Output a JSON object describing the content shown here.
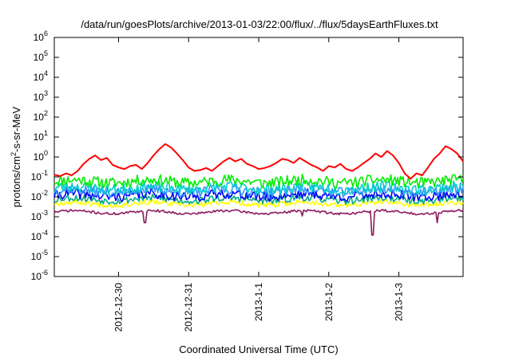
{
  "chart_data": {
    "type": "line",
    "title": "/data/run/goesPlots/archive/2013-01-03/22:00/flux/../flux/5daysEarthFluxes.txt",
    "xlabel": "Coordinated Universal Time (UTC)",
    "ylabel": "protons/cm2-s-sr-MeV",
    "ylabel_parts": [
      "protons/cm",
      "2",
      "-s-sr-MeV"
    ],
    "x_range": [
      "2012-12-29T02:00",
      "2013-01-03T22:00"
    ],
    "y_scale": "log",
    "ylim": [
      1e-06,
      1000000
    ],
    "y_ticks": [
      {
        "exp": "-6",
        "value": 1e-06
      },
      {
        "exp": "-5",
        "value": 1e-05
      },
      {
        "exp": "-4",
        "value": 0.0001
      },
      {
        "exp": "-3",
        "value": 0.001
      },
      {
        "exp": "-2",
        "value": 0.01
      },
      {
        "exp": "-1",
        "value": 0.1
      },
      {
        "exp": "0",
        "value": 1
      },
      {
        "exp": "1",
        "value": 10
      },
      {
        "exp": "2",
        "value": 100
      },
      {
        "exp": "3",
        "value": 1000
      },
      {
        "exp": "4",
        "value": 10000
      },
      {
        "exp": "5",
        "value": 100000
      },
      {
        "exp": "6",
        "value": 1000000
      }
    ],
    "y_tick_base": "10",
    "x_ticks": [
      {
        "label": "2012-12-30",
        "date": "2012-12-30T00:00"
      },
      {
        "label": "2012-12-31",
        "date": "2012-12-31T00:00"
      },
      {
        "label": "2013-1-1",
        "date": "2013-01-01T00:00"
      },
      {
        "label": "2013-1-2",
        "date": "2013-01-02T00:00"
      },
      {
        "label": "2013-1-3",
        "date": "2013-01-03T00:00"
      }
    ],
    "grid": false,
    "legend": "none",
    "series": [
      {
        "color": "#ff0000",
        "points": [
          [
            "2012-12-29T02:00",
            0.13
          ],
          [
            "2012-12-29T04:00",
            0.11
          ],
          [
            "2012-12-29T06:00",
            0.15
          ],
          [
            "2012-12-29T08:00",
            0.12
          ],
          [
            "2012-12-29T10:00",
            0.2
          ],
          [
            "2012-12-29T12:00",
            0.45
          ],
          [
            "2012-12-29T14:00",
            0.8
          ],
          [
            "2012-12-29T16:00",
            1.2
          ],
          [
            "2012-12-29T18:00",
            0.7
          ],
          [
            "2012-12-29T20:00",
            0.9
          ],
          [
            "2012-12-29T22:00",
            0.4
          ],
          [
            "2012-12-30T00:00",
            0.3
          ],
          [
            "2012-12-30T02:00",
            0.25
          ],
          [
            "2012-12-30T04:00",
            0.35
          ],
          [
            "2012-12-30T06:00",
            0.4
          ],
          [
            "2012-12-30T08:00",
            0.25
          ],
          [
            "2012-12-30T10:00",
            0.5
          ],
          [
            "2012-12-30T12:00",
            1.2
          ],
          [
            "2012-12-30T14:00",
            2.5
          ],
          [
            "2012-12-30T16:00",
            4.5
          ],
          [
            "2012-12-30T18:00",
            3.0
          ],
          [
            "2012-12-30T20:00",
            1.5
          ],
          [
            "2012-12-30T22:00",
            0.7
          ],
          [
            "2012-12-31T00:00",
            0.3
          ],
          [
            "2012-12-31T02:00",
            0.2
          ],
          [
            "2012-12-31T04:00",
            0.22
          ],
          [
            "2012-12-31T06:00",
            0.28
          ],
          [
            "2012-12-31T08:00",
            0.2
          ],
          [
            "2012-12-31T10:00",
            0.35
          ],
          [
            "2012-12-31T12:00",
            0.6
          ],
          [
            "2012-12-31T14:00",
            0.9
          ],
          [
            "2012-12-31T16:00",
            0.6
          ],
          [
            "2012-12-31T18:00",
            0.8
          ],
          [
            "2012-12-31T20:00",
            0.45
          ],
          [
            "2012-12-31T22:00",
            0.35
          ],
          [
            "2013-01-01T00:00",
            0.25
          ],
          [
            "2013-01-01T02:00",
            0.28
          ],
          [
            "2013-01-01T04:00",
            0.35
          ],
          [
            "2013-01-01T06:00",
            0.5
          ],
          [
            "2013-01-01T08:00",
            0.8
          ],
          [
            "2013-01-01T10:00",
            0.7
          ],
          [
            "2013-01-01T12:00",
            0.5
          ],
          [
            "2013-01-01T14:00",
            0.9
          ],
          [
            "2013-01-01T16:00",
            0.6
          ],
          [
            "2013-01-01T18:00",
            0.4
          ],
          [
            "2013-01-01T20:00",
            0.3
          ],
          [
            "2013-01-01T22:00",
            0.2
          ],
          [
            "2013-01-02T00:00",
            0.35
          ],
          [
            "2013-01-02T02:00",
            0.3
          ],
          [
            "2013-01-02T04:00",
            0.45
          ],
          [
            "2013-01-02T06:00",
            0.25
          ],
          [
            "2013-01-02T08:00",
            0.2
          ],
          [
            "2013-01-02T10:00",
            0.3
          ],
          [
            "2013-01-02T12:00",
            0.5
          ],
          [
            "2013-01-02T14:00",
            0.8
          ],
          [
            "2013-01-02T16:00",
            1.5
          ],
          [
            "2013-01-02T18:00",
            1.0
          ],
          [
            "2013-01-02T20:00",
            2.0
          ],
          [
            "2013-01-02T22:00",
            1.2
          ],
          [
            "2013-01-03T00:00",
            0.5
          ],
          [
            "2013-01-03T02:00",
            0.15
          ],
          [
            "2013-01-03T04:00",
            0.08
          ],
          [
            "2013-01-03T06:00",
            0.15
          ],
          [
            "2013-01-03T08:00",
            0.12
          ],
          [
            "2013-01-03T10:00",
            0.3
          ],
          [
            "2013-01-03T12:00",
            0.8
          ],
          [
            "2013-01-03T14:00",
            1.5
          ],
          [
            "2013-01-03T16:00",
            3.5
          ],
          [
            "2013-01-03T18:00",
            2.5
          ],
          [
            "2013-01-03T20:00",
            1.5
          ],
          [
            "2013-01-03T22:00",
            0.6
          ]
        ]
      },
      {
        "color": "#00ee00",
        "base": 0.06,
        "spread": 0.55,
        "seed": 11
      },
      {
        "color": "#00cccc",
        "base": 0.028,
        "spread": 0.55,
        "seed": 23
      },
      {
        "color": "#3399ff",
        "base": 0.02,
        "spread": 0.5,
        "seed": 37
      },
      {
        "color": "#0000ff",
        "base": 0.012,
        "spread": 0.5,
        "seed": 41
      },
      {
        "color": "#00aa88",
        "base": 0.0075,
        "spread": 0.35,
        "seed": 53
      },
      {
        "color": "#ffff00",
        "base": 0.0045,
        "spread": 0.25,
        "seed": 67
      },
      {
        "color": "#8b1a5e",
        "base": 0.0017,
        "spread": 0.12,
        "seed": 71,
        "dips": [
          [
            "2012-12-30T09:00",
            0.0005
          ],
          [
            "2013-01-02T15:00",
            0.00012
          ],
          [
            "2013-01-03T13:00",
            0.0005
          ],
          [
            "2013-01-01T15:00",
            0.0011
          ]
        ]
      }
    ]
  }
}
